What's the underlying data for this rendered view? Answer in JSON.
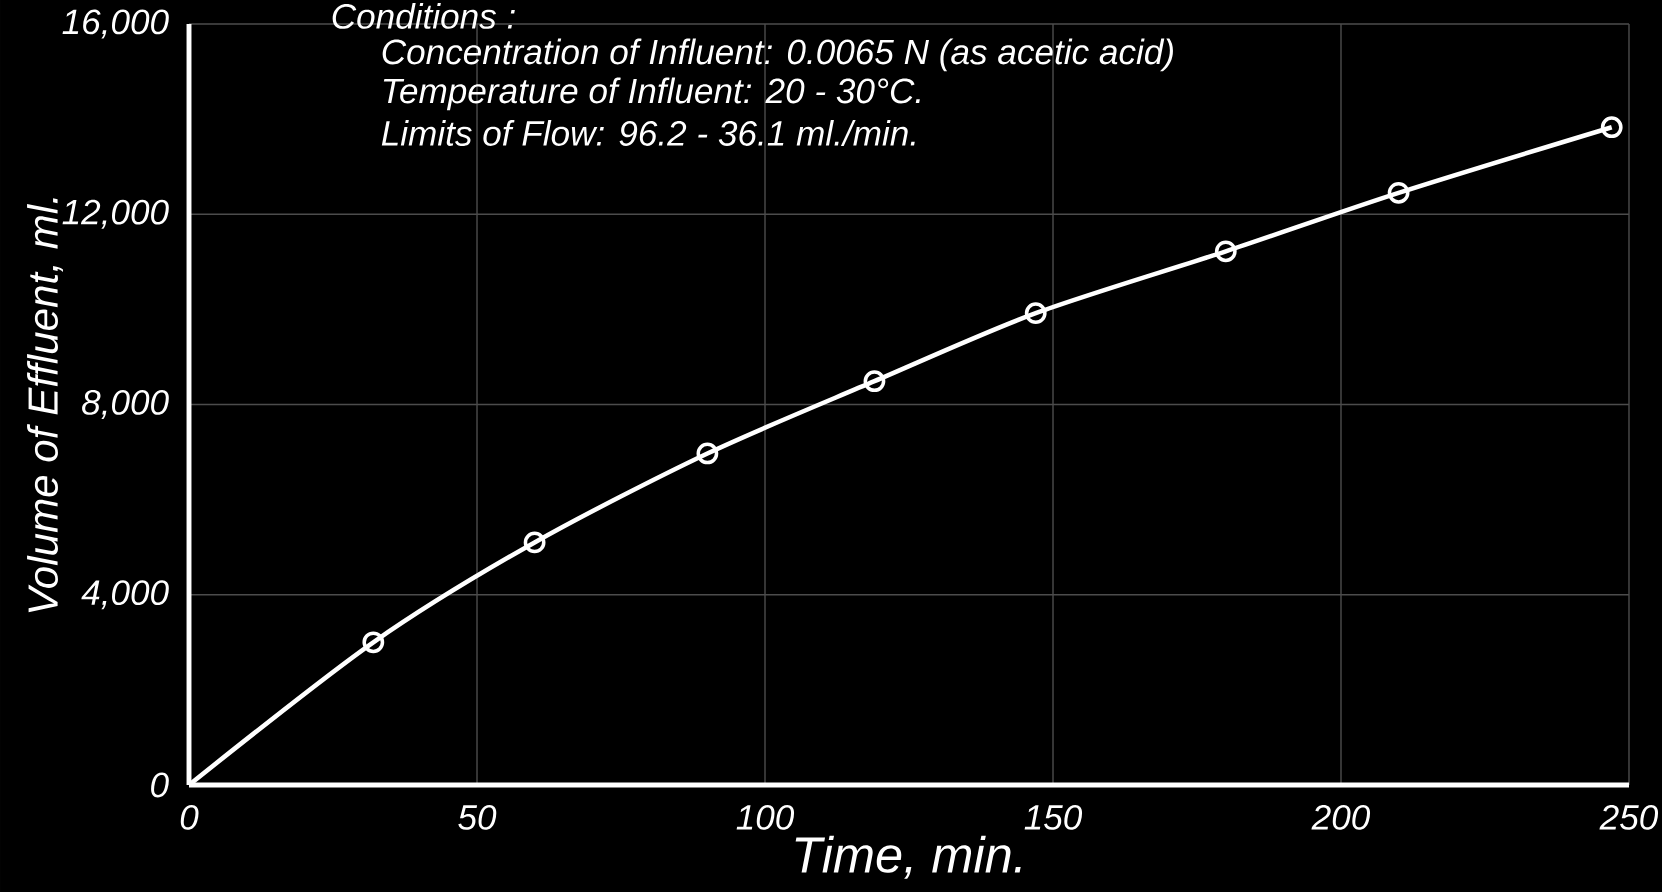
{
  "chart_data": {
    "type": "line",
    "xlabel": "Time, min.",
    "ylabel": "Volume of Effluent, ml.",
    "annotations": [
      "Conditions :",
      "Concentration of Influent: 0.0065 N (as acetic acid)",
      "Temperature of Influent: 20 - 30°C.",
      "Limits of Flow: 96.2 - 36.1 ml./min."
    ],
    "series": [
      {
        "color": "#ffffff",
        "x": [
          0,
          32,
          60,
          90,
          119,
          147,
          180,
          210,
          247
        ],
        "values": [
          0,
          3000,
          5100,
          6970,
          8490,
          9920,
          11220,
          12450,
          13830
        ]
      },
      {
        "type": "scatter",
        "marker": "circle",
        "color": "#ffffff",
        "x": [
          32,
          60,
          90,
          119,
          147,
          180,
          210,
          247
        ],
        "values": [
          3000,
          5100,
          6970,
          8490,
          9920,
          11220,
          12450,
          13830
        ]
      }
    ],
    "xlim": [
      0,
      250
    ],
    "ylim": [
      0,
      16000
    ],
    "xticks": [
      0,
      50,
      100,
      150,
      200,
      250
    ],
    "yticks": [
      {
        "value": 0,
        "label": "0"
      },
      {
        "value": 4000,
        "label": "4,000"
      },
      {
        "value": 8000,
        "label": "8,000"
      },
      {
        "value": 12000,
        "label": "12,000"
      },
      {
        "value": 16000,
        "label": "16,000"
      }
    ],
    "grid": true
  }
}
